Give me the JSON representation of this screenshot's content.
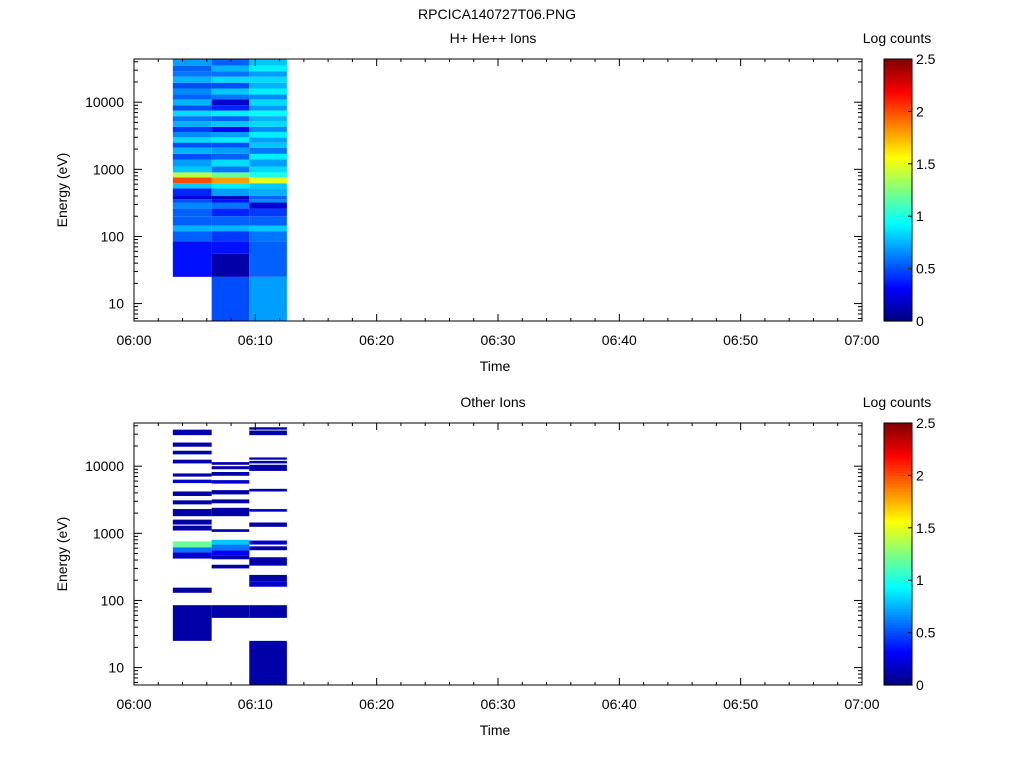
{
  "figure_title": "RPCICA140727T06.PNG",
  "colorbar": {
    "title": "Log counts",
    "range": [
      0,
      2.5
    ],
    "ticks": [
      "0",
      "0.5",
      "1",
      "1.5",
      "2",
      "2.5"
    ]
  },
  "chart_data": [
    {
      "type": "heatmap",
      "title": "H+ He++ Ions",
      "xlabel": "Time",
      "ylabel": "Energy (eV)",
      "x_ticks": [
        "06:00",
        "06:10",
        "06:20",
        "06:30",
        "06:40",
        "06:50",
        "07:00"
      ],
      "xlim_minutes": [
        0,
        60
      ],
      "y_scale": "log",
      "ylim": [
        5.5,
        44000
      ],
      "y_ticks": [
        "10",
        "100",
        "1000",
        "10000"
      ],
      "colorbar_label": "Log counts",
      "zlim": [
        0,
        2.5
      ],
      "columns": [
        {
          "t_start_min": 3.2,
          "t_end_min": 6.4,
          "cells": [
            [
              25,
              85,
              0.35
            ],
            [
              85,
              120,
              0.55
            ],
            [
              120,
              145,
              0.75
            ],
            [
              145,
              200,
              0.55
            ],
            [
              200,
              260,
              0.55
            ],
            [
              260,
              320,
              0.65
            ],
            [
              320,
              360,
              0.5
            ],
            [
              360,
              400,
              0.2
            ],
            [
              400,
              520,
              0.4
            ],
            [
              520,
              620,
              0.8
            ],
            [
              620,
              760,
              2.0
            ],
            [
              760,
              900,
              1.4
            ],
            [
              900,
              1100,
              0.8
            ],
            [
              1100,
              1400,
              0.7
            ],
            [
              1400,
              1700,
              0.5
            ],
            [
              1700,
              2100,
              0.75
            ],
            [
              2100,
              2500,
              0.5
            ],
            [
              2500,
              3000,
              0.85
            ],
            [
              3000,
              3600,
              0.65
            ],
            [
              3600,
              4300,
              0.45
            ],
            [
              4300,
              5200,
              0.75
            ],
            [
              5200,
              6200,
              0.6
            ],
            [
              6200,
              7500,
              0.85
            ],
            [
              7500,
              9000,
              0.5
            ],
            [
              9000,
              11000,
              0.75
            ],
            [
              11000,
              13000,
              0.55
            ],
            [
              13000,
              16000,
              0.65
            ],
            [
              16000,
              19500,
              0.5
            ],
            [
              19500,
              24000,
              0.75
            ],
            [
              24000,
              29000,
              0.6
            ],
            [
              29000,
              35000,
              0.55
            ],
            [
              35000,
              44000,
              0.7
            ]
          ]
        },
        {
          "t_start_min": 6.4,
          "t_end_min": 9.5,
          "cells": [
            [
              5.5,
              25,
              0.5
            ],
            [
              25,
              55,
              0.1
            ],
            [
              55,
              85,
              0.35
            ],
            [
              85,
              120,
              0.45
            ],
            [
              120,
              145,
              0.75
            ],
            [
              145,
              200,
              0.55
            ],
            [
              200,
              260,
              0.4
            ],
            [
              260,
              320,
              0.6
            ],
            [
              320,
              360,
              0.35
            ],
            [
              360,
              400,
              0.15
            ],
            [
              400,
              520,
              0.7
            ],
            [
              520,
              620,
              0.9
            ],
            [
              620,
              760,
              1.8
            ],
            [
              760,
              900,
              1.2
            ],
            [
              900,
              1100,
              0.6
            ],
            [
              1100,
              1400,
              0.85
            ],
            [
              1400,
              1700,
              0.55
            ],
            [
              1700,
              2100,
              0.7
            ],
            [
              2100,
              2500,
              0.5
            ],
            [
              2500,
              3000,
              0.9
            ],
            [
              3000,
              3600,
              0.7
            ],
            [
              3600,
              4300,
              0.3
            ],
            [
              4300,
              5200,
              0.8
            ],
            [
              5200,
              6200,
              0.55
            ],
            [
              6200,
              7500,
              0.9
            ],
            [
              7500,
              9000,
              0.4
            ],
            [
              9000,
              11000,
              0.2
            ],
            [
              11000,
              13000,
              0.6
            ],
            [
              13000,
              16000,
              0.8
            ],
            [
              16000,
              19500,
              0.5
            ],
            [
              19500,
              24000,
              0.85
            ],
            [
              24000,
              29000,
              0.6
            ],
            [
              29000,
              35000,
              0.75
            ],
            [
              35000,
              44000,
              0.55
            ]
          ]
        },
        {
          "t_start_min": 9.5,
          "t_end_min": 12.6,
          "cells": [
            [
              5.5,
              25,
              0.7
            ],
            [
              25,
              85,
              0.55
            ],
            [
              85,
              120,
              0.6
            ],
            [
              120,
              145,
              0.8
            ],
            [
              145,
              200,
              0.55
            ],
            [
              200,
              260,
              0.45
            ],
            [
              260,
              320,
              0.2
            ],
            [
              320,
              360,
              0.65
            ],
            [
              360,
              400,
              0.55
            ],
            [
              400,
              520,
              0.75
            ],
            [
              520,
              620,
              0.8
            ],
            [
              620,
              760,
              1.5
            ],
            [
              760,
              900,
              1.0
            ],
            [
              900,
              1100,
              0.85
            ],
            [
              1100,
              1400,
              0.7
            ],
            [
              1400,
              1700,
              0.9
            ],
            [
              1700,
              2100,
              0.6
            ],
            [
              2100,
              2500,
              0.8
            ],
            [
              2500,
              3000,
              0.7
            ],
            [
              3000,
              3600,
              0.9
            ],
            [
              3600,
              4300,
              0.65
            ],
            [
              4300,
              5200,
              0.85
            ],
            [
              5200,
              6200,
              0.75
            ],
            [
              6200,
              7500,
              0.95
            ],
            [
              7500,
              9000,
              0.7
            ],
            [
              9000,
              11000,
              0.85
            ],
            [
              11000,
              13000,
              0.65
            ],
            [
              13000,
              16000,
              0.9
            ],
            [
              16000,
              19500,
              0.75
            ],
            [
              19500,
              24000,
              0.85
            ],
            [
              24000,
              29000,
              0.7
            ],
            [
              29000,
              35000,
              0.9
            ],
            [
              35000,
              44000,
              0.8
            ]
          ]
        }
      ]
    },
    {
      "type": "heatmap",
      "title": "Other Ions",
      "xlabel": "Time",
      "ylabel": "Energy (eV)",
      "x_ticks": [
        "06:00",
        "06:10",
        "06:20",
        "06:30",
        "06:40",
        "06:50",
        "07:00"
      ],
      "xlim_minutes": [
        0,
        60
      ],
      "y_scale": "log",
      "ylim": [
        5.5,
        44000
      ],
      "y_ticks": [
        "10",
        "100",
        "1000",
        "10000"
      ],
      "colorbar_label": "Log counts",
      "zlim": [
        0,
        2.5
      ],
      "columns": [
        {
          "t_start_min": 3.2,
          "t_end_min": 6.4,
          "cells": [
            [
              25,
              85,
              0.1
            ],
            [
              130,
              155,
              0.1
            ],
            [
              420,
              520,
              0.2
            ],
            [
              520,
              620,
              0.6
            ],
            [
              620,
              760,
              1.2
            ],
            [
              1100,
              1300,
              0.1
            ],
            [
              1350,
              1600,
              0.1
            ],
            [
              1800,
              2300,
              0.1
            ],
            [
              2700,
              3100,
              0.1
            ],
            [
              3600,
              4200,
              0.1
            ],
            [
              5600,
              6300,
              0.2
            ],
            [
              7000,
              7800,
              0.1
            ],
            [
              11000,
              12500,
              0.1
            ],
            [
              15000,
              17000,
              0.1
            ],
            [
              19500,
              22500,
              0.1
            ],
            [
              29000,
              35000,
              0.1
            ]
          ]
        },
        {
          "t_start_min": 6.4,
          "t_end_min": 9.5,
          "cells": [
            [
              55,
              85,
              0.1
            ],
            [
              300,
              340,
              0.1
            ],
            [
              410,
              470,
              0.1
            ],
            [
              470,
              560,
              0.3
            ],
            [
              560,
              680,
              0.6
            ],
            [
              680,
              800,
              0.8
            ],
            [
              1050,
              1150,
              0.1
            ],
            [
              1800,
              2400,
              0.1
            ],
            [
              2800,
              3200,
              0.1
            ],
            [
              3800,
              4400,
              0.1
            ],
            [
              5500,
              6200,
              0.2
            ],
            [
              7200,
              8200,
              0.1
            ],
            [
              9000,
              10000,
              0.1
            ],
            [
              10500,
              11500,
              0.1
            ]
          ]
        },
        {
          "t_start_min": 9.5,
          "t_end_min": 12.6,
          "cells": [
            [
              5.5,
              25,
              0.1
            ],
            [
              55,
              85,
              0.1
            ],
            [
              160,
              190,
              0.2
            ],
            [
              190,
              240,
              0.1
            ],
            [
              330,
              440,
              0.1
            ],
            [
              560,
              640,
              0.1
            ],
            [
              680,
              780,
              0.2
            ],
            [
              1250,
              1450,
              0.1
            ],
            [
              2100,
              2300,
              0.2
            ],
            [
              4200,
              4600,
              0.1
            ],
            [
              8500,
              10500,
              0.1
            ],
            [
              11000,
              12000,
              0.1
            ],
            [
              12500,
              13500,
              0.1
            ],
            [
              29000,
              34000,
              0.1
            ],
            [
              35000,
              38000,
              0.1
            ]
          ]
        }
      ]
    }
  ]
}
